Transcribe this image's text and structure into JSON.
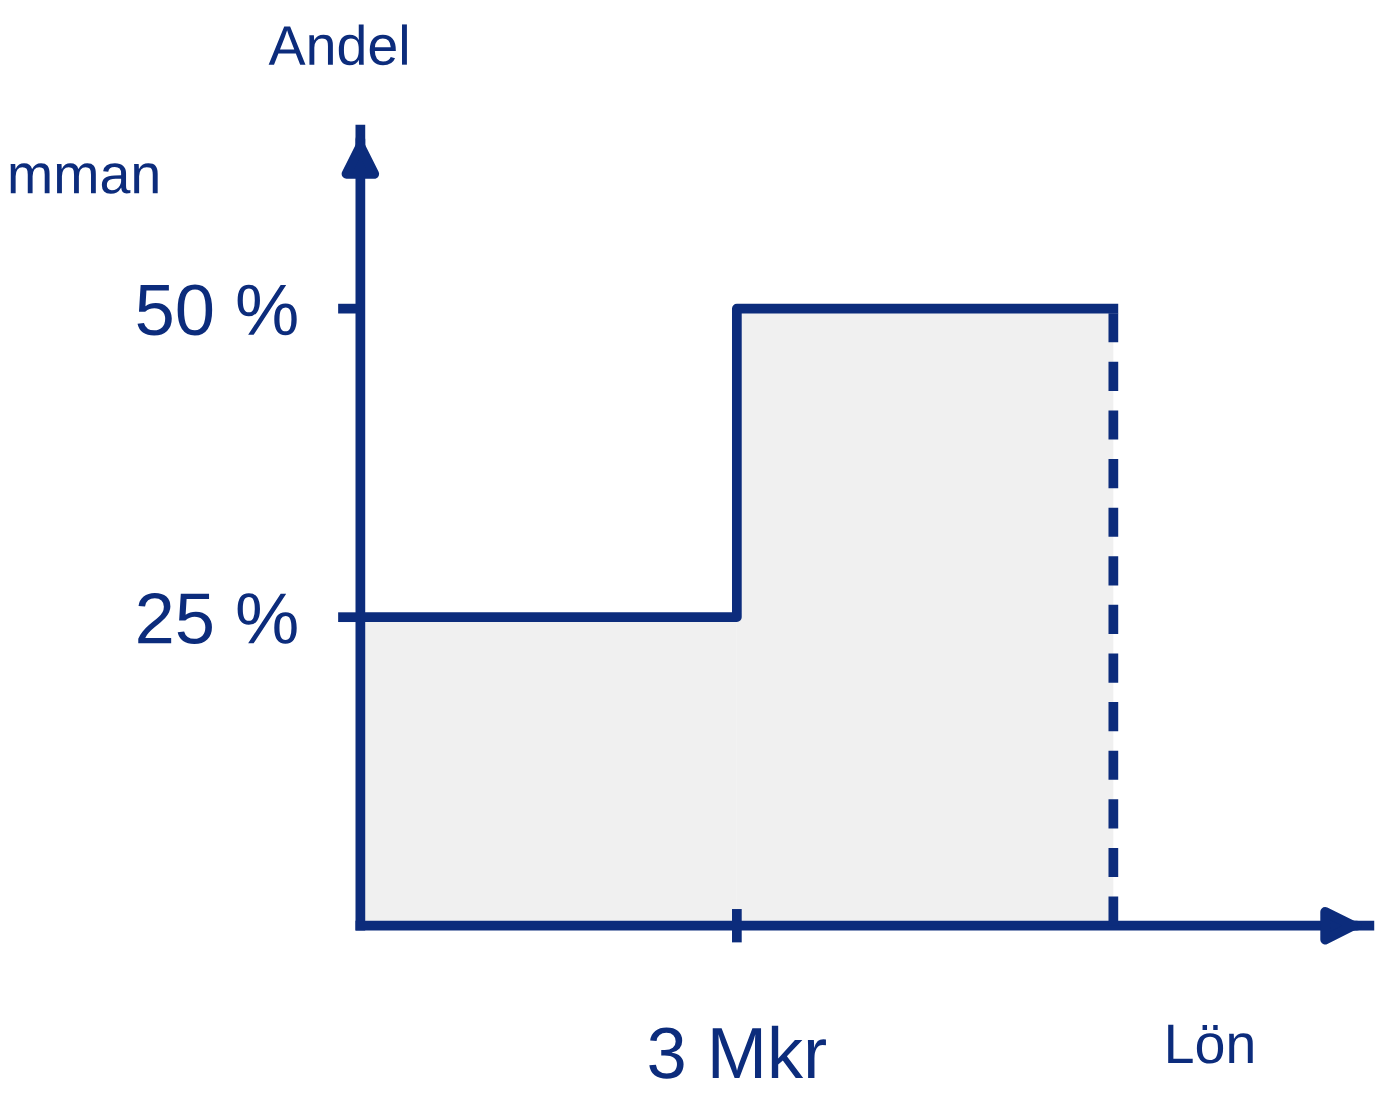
{
  "chart_data": {
    "type": "bar",
    "categories": [
      null,
      null
    ],
    "values": [
      25,
      50
    ],
    "color": "#f0f0f0",
    "ylim": [
      0,
      64.5
    ],
    "yticks": [
      {
        "value": 25,
        "label": "25 %"
      },
      {
        "value": 50,
        "label": "50 %"
      }
    ],
    "xlabel": "Lön",
    "ylabel": "Andel",
    "annotations": [
      "mman",
      "3 Mkr"
    ],
    "grid": false,
    "legend": false
  }
}
